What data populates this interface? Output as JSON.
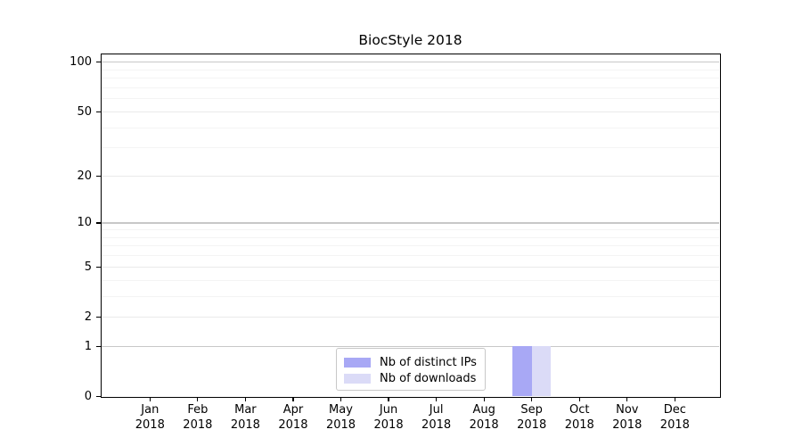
{
  "chart_data": {
    "type": "bar",
    "title": "BiocStyle 2018",
    "months": [
      "Jan",
      "Feb",
      "Mar",
      "Apr",
      "May",
      "Jun",
      "Jul",
      "Aug",
      "Sep",
      "Oct",
      "Nov",
      "Dec"
    ],
    "year_label": "2018",
    "categories": [
      "Jan 2018",
      "Feb 2018",
      "Mar 2018",
      "Apr 2018",
      "May 2018",
      "Jun 2018",
      "Jul 2018",
      "Aug 2018",
      "Sep 2018",
      "Oct 2018",
      "Nov 2018",
      "Dec 2018"
    ],
    "series": [
      {
        "name": "Nb of distinct IPs",
        "color": "#a8a8f5",
        "values": [
          0,
          0,
          0,
          0,
          0,
          0,
          0,
          0,
          1,
          0,
          0,
          0
        ]
      },
      {
        "name": "Nb of downloads",
        "color": "#dbdbf7",
        "values": [
          0,
          0,
          0,
          0,
          0,
          0,
          0,
          0,
          1,
          0,
          0,
          0
        ]
      }
    ],
    "yscale": "log1p",
    "ylim": [
      0,
      112
    ],
    "y_major_ticks": [
      0,
      1,
      2,
      5,
      10,
      20,
      50,
      100
    ],
    "y_minor_gridlines": [
      3,
      4,
      6,
      7,
      8,
      9,
      30,
      40,
      60,
      70,
      80,
      90
    ],
    "grid": "horizontal-only",
    "legend_position": "bottom-center-inside",
    "colors": {
      "decade_gridline": "#c8c8c8",
      "submajor_gridline": "#eaeaea",
      "minor_gridline": "#f4f4f4",
      "axis": "#000000",
      "text": "#000000",
      "background": "#ffffff"
    }
  }
}
